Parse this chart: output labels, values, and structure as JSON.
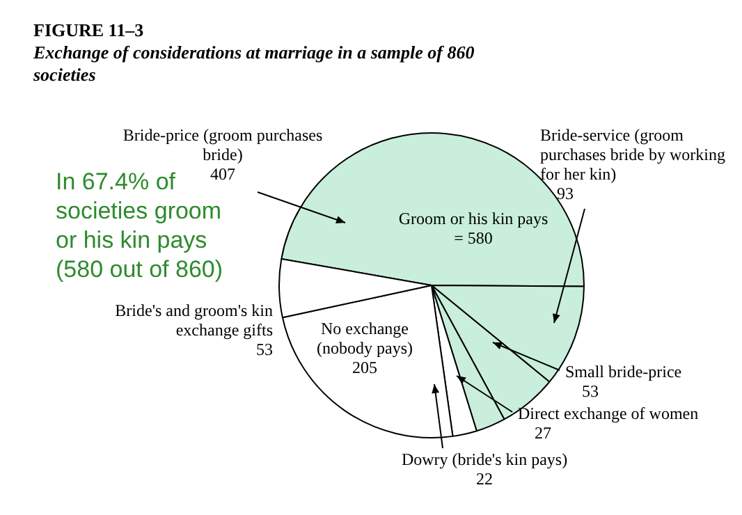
{
  "chart_data": {
    "type": "pie",
    "title": "FIGURE 11–3",
    "subtitle": "Exchange of considerations at marriage in a sample of 860 societies",
    "categories": [
      "Bride-price (groom purchases bride)",
      "Bride-service (groom purchases bride by working for her kin)",
      "Small bride-price",
      "Direct exchange of women",
      "Dowry (bride's kin pays)",
      "No exchange (nobody pays)",
      "Bride's and groom's kin exchange gifts"
    ],
    "values": [
      407,
      93,
      53,
      27,
      22,
      205,
      53
    ],
    "colors": [
      "#c9eedb",
      "#c9eedb",
      "#c9eedb",
      "#c9eedb",
      "#ffffff",
      "#ffffff",
      "#ffffff"
    ],
    "data_labels": true,
    "annotations": [
      "Groom or his kin pays = 580",
      "In 67.4% of societies groom or his kin pays (580 out of 860)"
    ]
  }
}
